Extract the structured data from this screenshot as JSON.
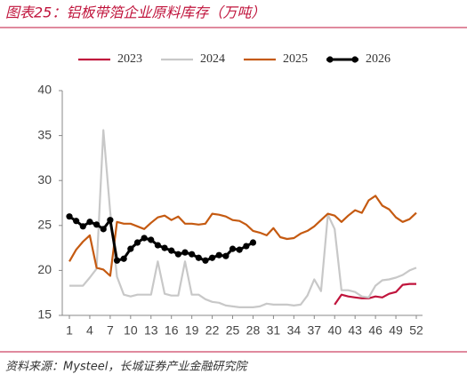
{
  "chart_data": {
    "type": "line",
    "title": "图表25：铝板带箔企业原料库存（万吨）",
    "source": "资料来源：Mysteel，长城证券产业金融研究院",
    "x": [
      1,
      2,
      3,
      4,
      5,
      6,
      7,
      8,
      9,
      10,
      11,
      12,
      13,
      14,
      15,
      16,
      17,
      18,
      19,
      20,
      21,
      22,
      23,
      24,
      25,
      26,
      27,
      28,
      29,
      30,
      31,
      32,
      33,
      34,
      35,
      36,
      37,
      38,
      39,
      40,
      41,
      42,
      43,
      44,
      45,
      46,
      47,
      48,
      49,
      50,
      51,
      52
    ],
    "xlim": [
      1,
      52
    ],
    "xticks": [
      1,
      4,
      7,
      10,
      13,
      16,
      19,
      22,
      25,
      28,
      31,
      34,
      37,
      40,
      43,
      46,
      49,
      52
    ],
    "ylim": [
      15,
      40
    ],
    "yticks": [
      15,
      20,
      25,
      30,
      35,
      40
    ],
    "grid": false,
    "legend": "top",
    "series": [
      {
        "name": "2023",
        "color": "#c0143c",
        "marker": false,
        "values": [
          null,
          null,
          null,
          null,
          null,
          null,
          null,
          null,
          null,
          null,
          null,
          null,
          null,
          null,
          null,
          null,
          null,
          null,
          null,
          null,
          null,
          null,
          null,
          null,
          null,
          null,
          null,
          null,
          null,
          null,
          null,
          null,
          null,
          null,
          null,
          null,
          null,
          null,
          null,
          16.2,
          17.3,
          17.1,
          17.0,
          16.9,
          16.9,
          17.1,
          17.0,
          17.4,
          17.6,
          18.4,
          18.5,
          18.5
        ]
      },
      {
        "name": "2024",
        "color": "#c8c8c8",
        "marker": false,
        "values": [
          18.3,
          18.3,
          18.3,
          19.2,
          20.2,
          35.6,
          26.5,
          19.3,
          17.3,
          17.1,
          17.3,
          17.3,
          17.3,
          21.0,
          17.4,
          17.2,
          17.2,
          21.0,
          17.3,
          17.3,
          16.8,
          16.5,
          16.4,
          16.1,
          16.0,
          15.9,
          15.9,
          15.9,
          16.0,
          16.3,
          16.2,
          16.2,
          16.2,
          16.1,
          16.2,
          17.2,
          19.0,
          17.7,
          26.2,
          24.6,
          17.8,
          17.8,
          17.6,
          17.1,
          17.0,
          18.3,
          18.9,
          19.0,
          19.2,
          19.5,
          20.0,
          20.3
        ]
      },
      {
        "name": "2025",
        "color": "#c55a11",
        "marker": false,
        "values": [
          21.0,
          22.3,
          23.2,
          23.9,
          20.3,
          20.1,
          19.4,
          25.4,
          25.2,
          25.2,
          24.9,
          24.6,
          25.3,
          25.9,
          26.1,
          25.6,
          26.0,
          25.2,
          25.2,
          25.1,
          25.2,
          26.3,
          26.2,
          26.0,
          25.6,
          25.5,
          25.1,
          24.4,
          24.2,
          23.9,
          24.7,
          23.7,
          23.5,
          23.6,
          24.1,
          24.4,
          24.9,
          25.6,
          26.3,
          26.1,
          25.4,
          26.1,
          26.7,
          26.4,
          27.8,
          28.3,
          27.2,
          26.8,
          25.9,
          25.4,
          25.7,
          26.4
        ]
      },
      {
        "name": "2026",
        "color": "#000000",
        "marker": true,
        "values": [
          26.0,
          25.5,
          24.9,
          25.4,
          25.1,
          24.6,
          25.6,
          21.1,
          21.3,
          22.4,
          23.1,
          23.6,
          23.4,
          22.8,
          22.5,
          22.2,
          21.8,
          22.0,
          21.8,
          21.4,
          21.1,
          21.4,
          21.7,
          21.6,
          22.4,
          22.3,
          22.7,
          23.1,
          null,
          null,
          null,
          null,
          null,
          null,
          null,
          null,
          null,
          null,
          null,
          null,
          null,
          null,
          null,
          null,
          null,
          null,
          null,
          null,
          null,
          null,
          null,
          null
        ]
      }
    ]
  }
}
